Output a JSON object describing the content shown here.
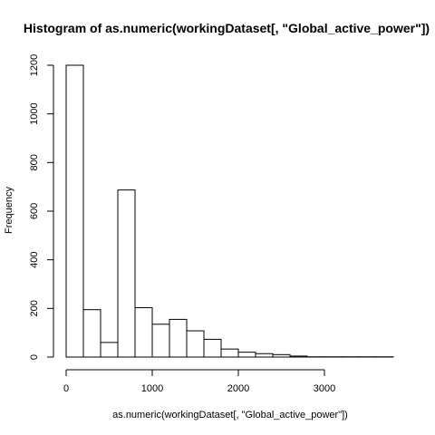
{
  "chart_data": {
    "type": "histogram",
    "title": "Histogram of as.numeric(workingDataset[, \"Global_active_power\"])",
    "xlabel": "as.numeric(workingDataset[, \"Global_active_power\"])",
    "ylabel": "Frequency",
    "bin_width": 200,
    "bins": [
      {
        "start": 0,
        "end": 200,
        "count": 1200
      },
      {
        "start": 200,
        "end": 400,
        "count": 195
      },
      {
        "start": 400,
        "end": 600,
        "count": 60
      },
      {
        "start": 600,
        "end": 800,
        "count": 687
      },
      {
        "start": 800,
        "end": 1000,
        "count": 203
      },
      {
        "start": 1000,
        "end": 1200,
        "count": 135
      },
      {
        "start": 1200,
        "end": 1400,
        "count": 155
      },
      {
        "start": 1400,
        "end": 1600,
        "count": 108
      },
      {
        "start": 1600,
        "end": 1800,
        "count": 73
      },
      {
        "start": 1800,
        "end": 2000,
        "count": 33
      },
      {
        "start": 2000,
        "end": 2200,
        "count": 20
      },
      {
        "start": 2200,
        "end": 2400,
        "count": 14
      },
      {
        "start": 2400,
        "end": 2600,
        "count": 10
      },
      {
        "start": 2600,
        "end": 2800,
        "count": 4
      },
      {
        "start": 2800,
        "end": 3000,
        "count": 1
      },
      {
        "start": 3000,
        "end": 3200,
        "count": 1
      },
      {
        "start": 3200,
        "end": 3400,
        "count": 1
      },
      {
        "start": 3400,
        "end": 3600,
        "count": 1
      },
      {
        "start": 3600,
        "end": 3800,
        "count": 1
      }
    ],
    "xlim": [
      0,
      3800
    ],
    "ylim": [
      0,
      1200
    ],
    "x_ticks": [
      {
        "value": 0,
        "label": "0"
      },
      {
        "value": 1000,
        "label": "1000"
      },
      {
        "value": 2000,
        "label": "2000"
      },
      {
        "value": 3000,
        "label": "3000"
      }
    ],
    "y_ticks": [
      {
        "value": 0,
        "label": "0"
      },
      {
        "value": 200,
        "label": "200"
      },
      {
        "value": 400,
        "label": "400"
      },
      {
        "value": 600,
        "label": "600"
      },
      {
        "value": 800,
        "label": "800"
      },
      {
        "value": 1000,
        "label": "1000"
      },
      {
        "value": 1200,
        "label": "1200"
      }
    ],
    "grid": false,
    "bar_fill": "#ffffff",
    "bar_stroke": "#000000"
  }
}
